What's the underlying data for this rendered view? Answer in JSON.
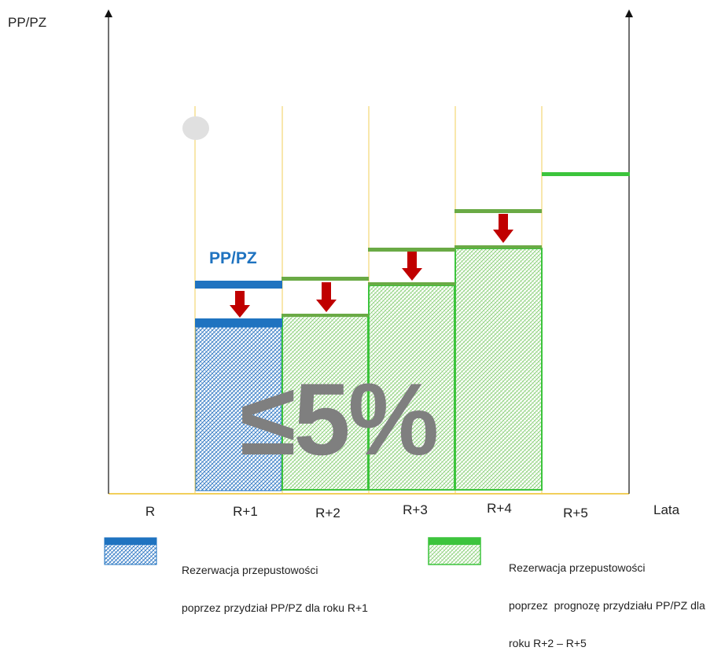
{
  "axes": {
    "y_title": "PP/PZ",
    "x_title": "Lata"
  },
  "years": [
    "R",
    "R+1",
    "R+2",
    "R+3",
    "R+4",
    "R+5"
  ],
  "capacity_label": "PP/PZ",
  "big_label": "≤5%",
  "legend": {
    "allocation": {
      "line1": "Rezerwacja przepustowości",
      "line2": "poprzez przydział PP/PZ dla roku R+1"
    },
    "forecast": {
      "line1": "Rezerwacja przepustowości",
      "line2": "poprzez  prognozę przydziału PP/PZ dla",
      "line3": "roku R+2 – R+5"
    }
  },
  "colors": {
    "allocation": "#1f73c0",
    "forecast": "#6aaa45",
    "forecast_bright": "#3cc43c",
    "arrow": "#c00000",
    "gridline": "#f2cf5a",
    "big_label": "#7f7f7f"
  },
  "icons": {
    "arrow": "down-arrow-icon"
  }
}
